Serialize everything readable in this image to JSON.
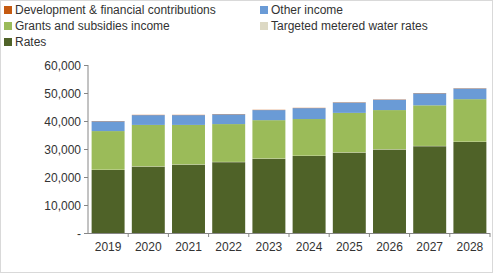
{
  "chart_data": {
    "type": "bar",
    "stacked": true,
    "grid": false,
    "legend": "top",
    "categories": [
      "2019",
      "2020",
      "2021",
      "2022",
      "2023",
      "2024",
      "2025",
      "2026",
      "2027",
      "2028"
    ],
    "ylim": [
      0,
      60000
    ],
    "yticks": [
      {
        "value": 0,
        "label": "-"
      },
      {
        "value": 10000,
        "label": "10,000"
      },
      {
        "value": 20000,
        "label": "20,000"
      },
      {
        "value": 30000,
        "label": "30,000"
      },
      {
        "value": 40000,
        "label": "40,000"
      },
      {
        "value": 50000,
        "label": "50,000"
      },
      {
        "value": 60000,
        "label": "60,000"
      }
    ],
    "series": [
      {
        "name": "Rates",
        "color": "#4f6228",
        "values": [
          22500,
          23700,
          24400,
          25300,
          26500,
          27500,
          28700,
          29800,
          31000,
          32500
        ]
      },
      {
        "name": "Targeted metered water rates",
        "color": "#ddd9c4",
        "values": [
          100,
          100,
          100,
          100,
          100,
          100,
          100,
          100,
          100,
          100
        ]
      },
      {
        "name": "Grants and subsidies income",
        "color": "#9bbb59",
        "values": [
          13800,
          14800,
          14100,
          13500,
          13700,
          13100,
          14100,
          14000,
          14500,
          15200
        ]
      },
      {
        "name": "Other income",
        "color": "#6a9bd6",
        "values": [
          3500,
          3500,
          3500,
          3500,
          3600,
          3900,
          3700,
          3700,
          4300,
          3800
        ]
      },
      {
        "name": "Development & financial contributions",
        "color": "#c55a11",
        "values": [
          100,
          100,
          100,
          100,
          100,
          100,
          100,
          100,
          100,
          100
        ]
      }
    ]
  }
}
